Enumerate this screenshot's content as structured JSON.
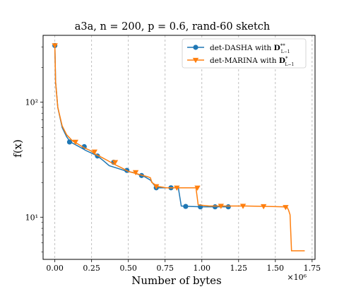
{
  "chart_data": {
    "type": "line",
    "title": "a3a, n = 200, p = 0.6, rand-60 sketch",
    "xlabel": "Number of bytes",
    "ylabel": "f(x)",
    "x_multiplier_label": "×10⁶",
    "x_scale_factor": 1000000,
    "xlim": [
      -0.08,
      1.77
    ],
    "ylim": [
      4.3,
      380
    ],
    "yscale": "log",
    "grid": "vertical dashed",
    "legend_position": "top-right",
    "x_ticks": [
      0.0,
      0.25,
      0.5,
      0.75,
      1.0,
      1.25,
      1.5,
      1.75
    ],
    "x_tick_labels": [
      "0.00",
      "0.25",
      "0.50",
      "0.75",
      "1.00",
      "1.25",
      "1.50",
      "1.75"
    ],
    "y_ticks": [
      10,
      100
    ],
    "y_tick_labels": [
      "10¹",
      "10²"
    ],
    "series": [
      {
        "name": "det-DASHA with D**L-1",
        "color": "#1f77b4",
        "marker": "circle",
        "points": [
          [
            0.0,
            310
          ],
          [
            0.005,
            150
          ],
          [
            0.02,
            90
          ],
          [
            0.05,
            60
          ],
          [
            0.08,
            50
          ],
          [
            0.1,
            46
          ],
          [
            0.12,
            44
          ],
          [
            0.15,
            42
          ],
          [
            0.18,
            40
          ],
          [
            0.21,
            38
          ],
          [
            0.25,
            36
          ],
          [
            0.29,
            34
          ],
          [
            0.33,
            31
          ],
          [
            0.37,
            28
          ],
          [
            0.41,
            27
          ],
          [
            0.45,
            26
          ],
          [
            0.49,
            25
          ],
          [
            0.53,
            24.5
          ],
          [
            0.57,
            23.5
          ],
          [
            0.61,
            22.5
          ],
          [
            0.65,
            21
          ],
          [
            0.69,
            18
          ],
          [
            0.73,
            18
          ],
          [
            0.79,
            18
          ],
          [
            0.84,
            18
          ],
          [
            0.86,
            12.5
          ],
          [
            0.92,
            12.4
          ],
          [
            1.0,
            12.3
          ],
          [
            1.1,
            12.3
          ],
          [
            1.18,
            12.3
          ]
        ],
        "markers": [
          [
            0.0,
            310
          ],
          [
            0.1,
            45
          ],
          [
            0.2,
            41
          ],
          [
            0.29,
            34
          ],
          [
            0.4,
            30
          ],
          [
            0.49,
            25.5
          ],
          [
            0.59,
            23
          ],
          [
            0.69,
            18
          ],
          [
            0.79,
            18
          ],
          [
            0.89,
            12.4
          ],
          [
            0.99,
            12.3
          ],
          [
            1.09,
            12.3
          ],
          [
            1.18,
            12.3
          ]
        ]
      },
      {
        "name": "det-MARINA with D*L-1",
        "color": "#ff7f0e",
        "marker": "triangle-down",
        "points": [
          [
            0.0,
            310
          ],
          [
            0.005,
            150
          ],
          [
            0.02,
            90
          ],
          [
            0.05,
            62
          ],
          [
            0.08,
            52
          ],
          [
            0.12,
            46
          ],
          [
            0.16,
            43
          ],
          [
            0.2,
            40
          ],
          [
            0.24,
            38
          ],
          [
            0.28,
            35
          ],
          [
            0.32,
            33
          ],
          [
            0.36,
            31
          ],
          [
            0.4,
            29
          ],
          [
            0.45,
            27
          ],
          [
            0.5,
            25
          ],
          [
            0.55,
            24
          ],
          [
            0.6,
            23
          ],
          [
            0.63,
            22.5
          ],
          [
            0.65,
            22
          ],
          [
            0.66,
            20
          ],
          [
            0.7,
            18.5
          ],
          [
            0.76,
            18
          ],
          [
            0.83,
            18
          ],
          [
            0.9,
            18
          ],
          [
            0.96,
            18
          ],
          [
            0.975,
            12.8
          ],
          [
            1.05,
            12.5
          ],
          [
            1.15,
            12.5
          ],
          [
            1.3,
            12.5
          ],
          [
            1.45,
            12.4
          ],
          [
            1.55,
            12.3
          ],
          [
            1.58,
            12.2
          ],
          [
            1.59,
            11.5
          ],
          [
            1.6,
            10.5
          ],
          [
            1.61,
            5.1
          ],
          [
            1.7,
            5.1
          ]
        ],
        "markers": [
          [
            0.0,
            310
          ],
          [
            0.14,
            45
          ],
          [
            0.27,
            37
          ],
          [
            0.41,
            30
          ],
          [
            0.55,
            24.5
          ],
          [
            0.69,
            18.5
          ],
          [
            0.83,
            18
          ],
          [
            0.97,
            18
          ],
          [
            1.13,
            12.5
          ],
          [
            1.28,
            12.5
          ],
          [
            1.42,
            12.4
          ],
          [
            1.57,
            12.2
          ]
        ]
      }
    ]
  },
  "legend": {
    "dasha_prefix": "det-DASHA with ",
    "dasha_symbol": "D",
    "dasha_sup": "**",
    "dasha_sub": "L−1",
    "marina_prefix": "det-MARINA with ",
    "marina_symbol": "D",
    "marina_sup": "*",
    "marina_sub": "L−1"
  }
}
